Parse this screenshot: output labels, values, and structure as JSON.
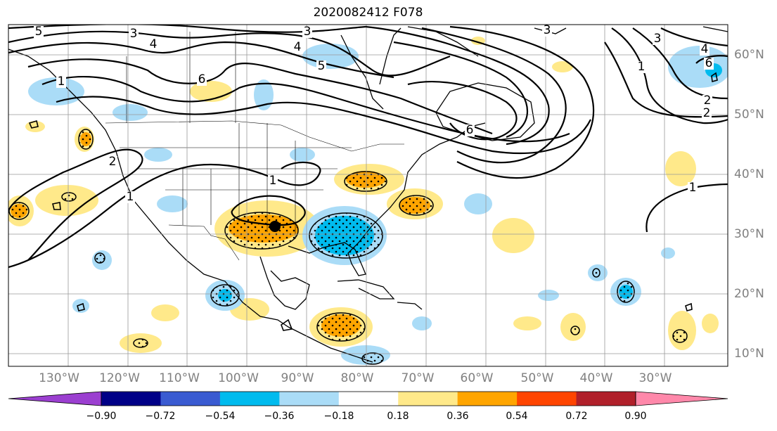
{
  "title": "2020082412 F078",
  "lon_labels": [
    "130°W",
    "120°W",
    "110°W",
    "100°W",
    "90°W",
    "80°W",
    "70°W",
    "60°W",
    "50°W",
    "40°W",
    "30°W"
  ],
  "lat_labels": [
    "60°N",
    "50°N",
    "40°N",
    "30°N",
    "20°N",
    "10°N"
  ],
  "contour_labels": [
    "5",
    "3",
    "4",
    "3",
    "4",
    "5",
    "3",
    "6",
    "1",
    "2",
    "1",
    "1",
    "6",
    "1",
    "2",
    "4",
    "6",
    "3",
    "1",
    "2"
  ],
  "colorbar": {
    "ticks": [
      "−0.90",
      "−0.72",
      "−0.54",
      "−0.36",
      "−0.18",
      "0.18",
      "0.36",
      "0.54",
      "0.72",
      "0.90"
    ],
    "colors": [
      "#9b3fd0",
      "#000087",
      "#3a5bd1",
      "#00bbee",
      "#aadcf7",
      "#ffffff",
      "#ffe98a",
      "#ffa500",
      "#ff4500",
      "#b0202a",
      "#ff88aa"
    ]
  },
  "storm_marker": "black-dot"
}
